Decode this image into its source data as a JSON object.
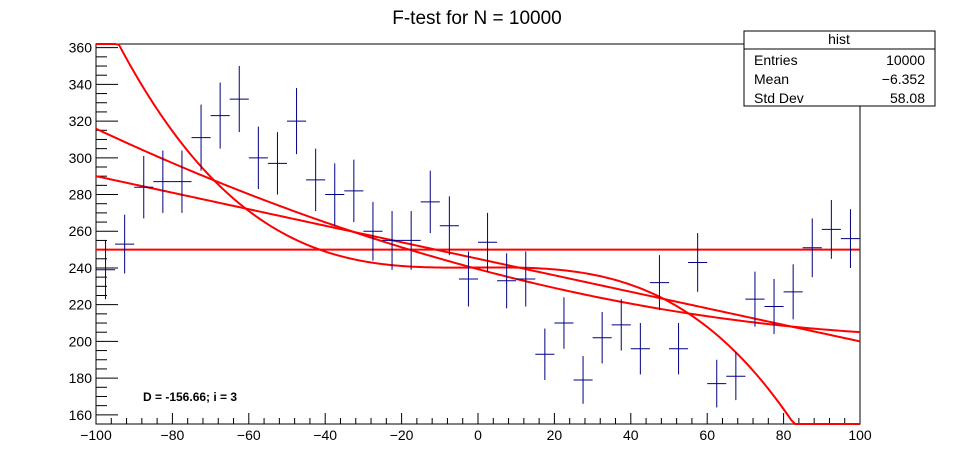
{
  "chart_data": {
    "type": "scatter",
    "title": "F-test for N = 10000",
    "xlabel": "",
    "ylabel": "",
    "xlim": [
      -100,
      100
    ],
    "ylim": [
      155,
      362
    ],
    "x_ticks": [
      -100,
      -80,
      -60,
      -40,
      -20,
      0,
      20,
      40,
      60,
      80,
      100
    ],
    "y_ticks": [
      160,
      180,
      200,
      220,
      240,
      260,
      280,
      300,
      320,
      340,
      360
    ],
    "histogram": {
      "name": "hist",
      "bin_width": 5,
      "color": "#000080",
      "points": [
        {
          "x": -97.5,
          "y": 239,
          "err": 16
        },
        {
          "x": -92.5,
          "y": 253,
          "err": 16
        },
        {
          "x": -87.5,
          "y": 284,
          "err": 17
        },
        {
          "x": -82.5,
          "y": 287,
          "err": 17
        },
        {
          "x": -77.5,
          "y": 287,
          "err": 17
        },
        {
          "x": -72.5,
          "y": 311,
          "err": 18
        },
        {
          "x": -67.5,
          "y": 323,
          "err": 18
        },
        {
          "x": -62.5,
          "y": 332,
          "err": 18
        },
        {
          "x": -57.5,
          "y": 300,
          "err": 17
        },
        {
          "x": -52.5,
          "y": 297,
          "err": 17
        },
        {
          "x": -47.5,
          "y": 320,
          "err": 18
        },
        {
          "x": -42.5,
          "y": 288,
          "err": 17
        },
        {
          "x": -37.5,
          "y": 280,
          "err": 17
        },
        {
          "x": -32.5,
          "y": 282,
          "err": 17
        },
        {
          "x": -27.5,
          "y": 260,
          "err": 16
        },
        {
          "x": -22.5,
          "y": 255,
          "err": 16
        },
        {
          "x": -17.5,
          "y": 255,
          "err": 16
        },
        {
          "x": -12.5,
          "y": 276,
          "err": 17
        },
        {
          "x": -7.5,
          "y": 263,
          "err": 16
        },
        {
          "x": -2.5,
          "y": 234,
          "err": 15
        },
        {
          "x": 2.5,
          "y": 254,
          "err": 16
        },
        {
          "x": 7.5,
          "y": 233,
          "err": 15
        },
        {
          "x": 12.5,
          "y": 234,
          "err": 15
        },
        {
          "x": 17.5,
          "y": 193,
          "err": 14
        },
        {
          "x": 22.5,
          "y": 210,
          "err": 14
        },
        {
          "x": 27.5,
          "y": 179,
          "err": 13
        },
        {
          "x": 32.5,
          "y": 202,
          "err": 14
        },
        {
          "x": 37.5,
          "y": 209,
          "err": 14
        },
        {
          "x": 42.5,
          "y": 196,
          "err": 14
        },
        {
          "x": 47.5,
          "y": 232,
          "err": 15
        },
        {
          "x": 52.5,
          "y": 196,
          "err": 14
        },
        {
          "x": 57.5,
          "y": 243,
          "err": 16
        },
        {
          "x": 62.5,
          "y": 177,
          "err": 13
        },
        {
          "x": 67.5,
          "y": 181,
          "err": 13
        },
        {
          "x": 72.5,
          "y": 223,
          "err": 15
        },
        {
          "x": 77.5,
          "y": 219,
          "err": 15
        },
        {
          "x": 82.5,
          "y": 227,
          "err": 15
        },
        {
          "x": 87.5,
          "y": 251,
          "err": 16
        },
        {
          "x": 92.5,
          "y": 261,
          "err": 16
        },
        {
          "x": 97.5,
          "y": 256,
          "err": 16
        }
      ]
    },
    "fits": {
      "color": "#ff0000",
      "curves": [
        {
          "coefficients": [
            250
          ]
        },
        {
          "coefficients": [
            245,
            -0.45
          ]
        },
        {
          "coefficients": [
            239.35,
            -0.554,
            0.00211
          ]
        },
        {
          "coefficients": [
            240.24,
            0.0135,
            -0.00022,
            -0.00015
          ]
        }
      ]
    },
    "grid": false,
    "legend": "none"
  },
  "stats_box": {
    "title": "hist",
    "rows": [
      {
        "label": "Entries",
        "value": "10000"
      },
      {
        "label": "Mean",
        "value": "−6.352"
      },
      {
        "label": "Std Dev",
        "value": "58.08"
      }
    ]
  },
  "annotation": {
    "text": "D = -156.66; i = 3"
  }
}
